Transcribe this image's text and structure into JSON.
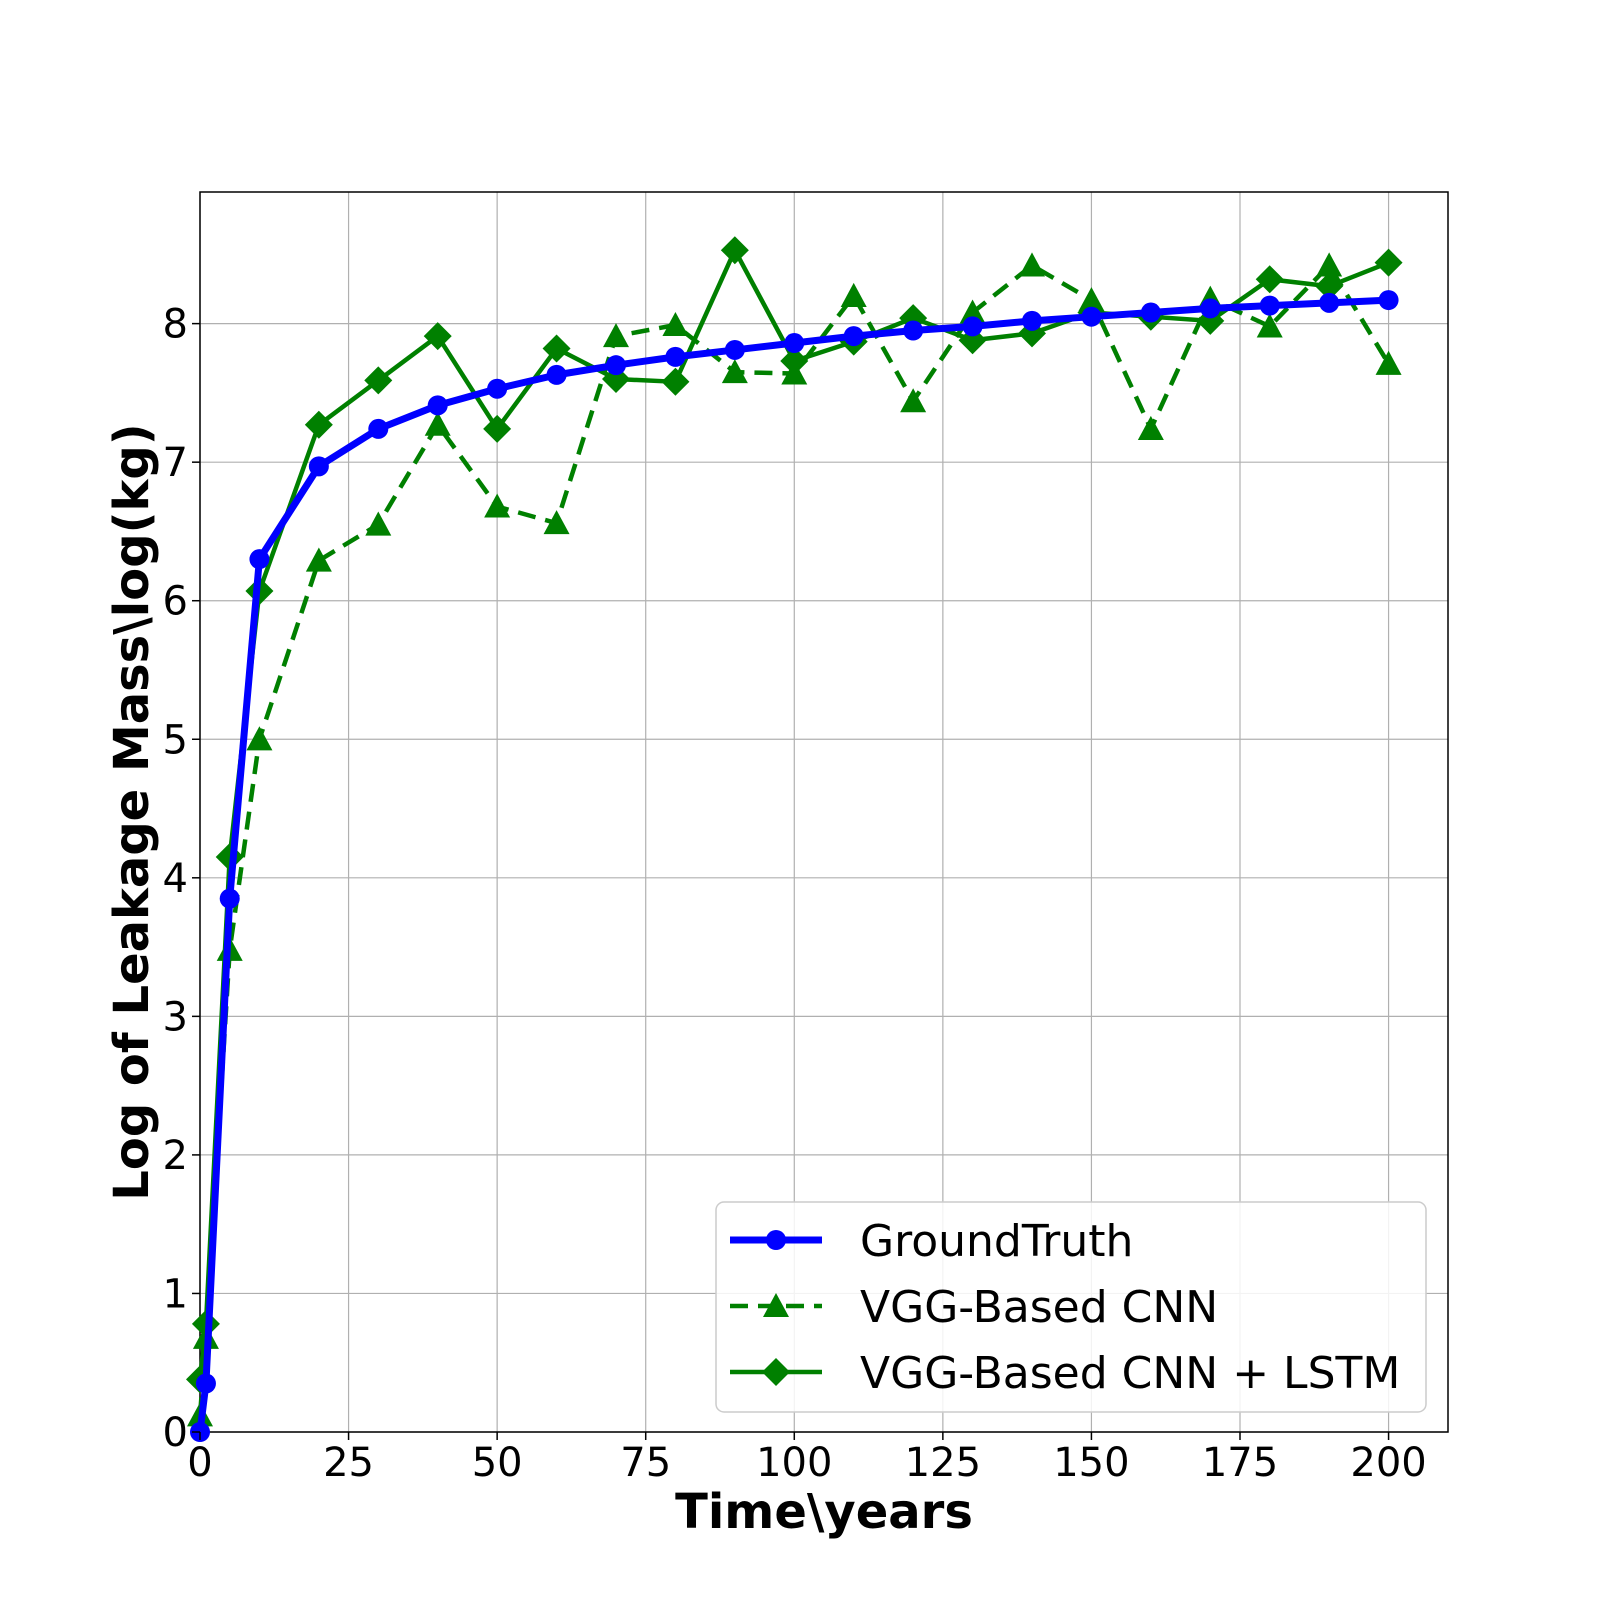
{
  "chart_data": {
    "type": "line",
    "title": "",
    "xlabel": "Time\\years",
    "ylabel": "Log of Leakage Mass\\log(kg)",
    "xlim": [
      0,
      210
    ],
    "ylim": [
      0,
      8.95
    ],
    "xticks": [
      0,
      25,
      50,
      75,
      100,
      125,
      150,
      175,
      200
    ],
    "yticks": [
      0,
      1,
      2,
      3,
      4,
      5,
      6,
      7,
      8
    ],
    "grid": true,
    "legend_position": "lower-right",
    "series": [
      {
        "name": "GroundTruth",
        "color": "#0000ff",
        "line_style": "solid",
        "marker": "circle",
        "x": [
          0,
          1,
          5,
          10,
          20,
          30,
          40,
          50,
          60,
          70,
          80,
          90,
          100,
          110,
          120,
          130,
          140,
          150,
          160,
          170,
          180,
          190,
          200
        ],
        "y": [
          0,
          0.35,
          3.85,
          6.3,
          6.97,
          7.24,
          7.41,
          7.53,
          7.63,
          7.7,
          7.76,
          7.81,
          7.86,
          7.91,
          7.95,
          7.98,
          8.02,
          8.05,
          8.08,
          8.11,
          8.13,
          8.15,
          8.17
        ]
      },
      {
        "name": "VGG-Based CNN",
        "color": "#008000",
        "line_style": "dashed",
        "marker": "triangle",
        "x": [
          0,
          1,
          5,
          10,
          20,
          30,
          40,
          50,
          60,
          70,
          80,
          90,
          100,
          110,
          120,
          130,
          140,
          150,
          160,
          170,
          180,
          190,
          200
        ],
        "y": [
          0.12,
          0.68,
          3.48,
          5.0,
          6.29,
          6.55,
          7.27,
          6.68,
          6.56,
          7.91,
          7.99,
          7.65,
          7.64,
          8.2,
          7.44,
          8.08,
          8.42,
          8.17,
          7.24,
          8.18,
          7.98,
          8.42,
          7.71
        ]
      },
      {
        "name": "VGG-Based CNN + LSTM",
        "color": "#008000",
        "line_style": "solid",
        "marker": "diamond",
        "x": [
          0,
          1,
          5,
          10,
          20,
          30,
          40,
          50,
          60,
          70,
          80,
          90,
          100,
          110,
          120,
          130,
          140,
          150,
          160,
          170,
          180,
          190,
          200
        ],
        "y": [
          0.38,
          0.78,
          4.15,
          6.07,
          7.27,
          7.59,
          7.91,
          7.24,
          7.82,
          7.6,
          7.58,
          8.53,
          7.73,
          7.87,
          8.04,
          7.88,
          7.93,
          8.08,
          8.05,
          8.02,
          8.32,
          8.27,
          8.44
        ]
      }
    ]
  }
}
